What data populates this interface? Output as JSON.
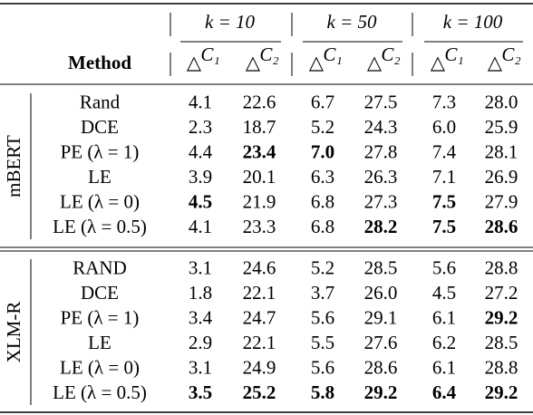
{
  "table": {
    "header": {
      "method": "Method",
      "groups": [
        {
          "label": "k = 10",
          "columns": [
            {
              "symbol": "△",
              "sup": "C₁"
            },
            {
              "symbol": "△",
              "sup": "C₂"
            }
          ]
        },
        {
          "label": "k = 50",
          "columns": [
            {
              "symbol": "△",
              "sup": "C₁"
            },
            {
              "symbol": "△",
              "sup": "C₂"
            }
          ]
        },
        {
          "label": "k = 100",
          "columns": [
            {
              "symbol": "△",
              "sup": "C₁"
            },
            {
              "symbol": "△",
              "sup": "C₂"
            }
          ]
        }
      ]
    },
    "sections": [
      {
        "label": "mBERT",
        "rows": [
          {
            "method": "Rand",
            "cells": [
              "4.1",
              "22.6",
              "6.7",
              "27.5",
              "7.3",
              "28.0"
            ],
            "bold": []
          },
          {
            "method": "DCE",
            "cells": [
              "2.3",
              "18.7",
              "5.2",
              "24.3",
              "6.0",
              "25.9"
            ],
            "bold": []
          },
          {
            "method": "PE (λ = 1)",
            "cells": [
              "4.4",
              "23.4",
              "7.0",
              "27.8",
              "7.4",
              "28.1"
            ],
            "bold": [
              1,
              2
            ]
          },
          {
            "method": "LE",
            "cells": [
              "3.9",
              "20.1",
              "6.3",
              "26.3",
              "7.1",
              "26.9"
            ],
            "bold": []
          },
          {
            "method": "LE (λ = 0)",
            "cells": [
              "4.5",
              "21.9",
              "6.8",
              "27.3",
              "7.5",
              "27.9"
            ],
            "bold": [
              0,
              4
            ]
          },
          {
            "method": "LE (λ = 0.5)",
            "cells": [
              "4.1",
              "23.3",
              "6.8",
              "28.2",
              "7.5",
              "28.6"
            ],
            "bold": [
              3,
              4,
              5
            ]
          }
        ]
      },
      {
        "label": "XLM-R",
        "rows": [
          {
            "method": "RAND",
            "cells": [
              "3.1",
              "24.6",
              "5.2",
              "28.5",
              "5.6",
              "28.8"
            ],
            "bold": []
          },
          {
            "method": "DCE",
            "cells": [
              "1.8",
              "22.1",
              "3.7",
              "26.0",
              "4.5",
              "27.2"
            ],
            "bold": []
          },
          {
            "method": "PE (λ = 1)",
            "cells": [
              "3.4",
              "24.7",
              "5.6",
              "29.1",
              "6.1",
              "29.2"
            ],
            "bold": [
              5
            ]
          },
          {
            "method": "LE",
            "cells": [
              "2.9",
              "22.1",
              "5.5",
              "27.6",
              "6.2",
              "28.5"
            ],
            "bold": []
          },
          {
            "method": "LE (λ = 0)",
            "cells": [
              "3.1",
              "24.9",
              "5.6",
              "28.6",
              "6.1",
              "28.8"
            ],
            "bold": []
          },
          {
            "method": "LE (λ = 0.5)",
            "cells": [
              "3.5",
              "25.2",
              "5.8",
              "29.2",
              "6.4",
              "29.2"
            ],
            "bold": [
              0,
              1,
              2,
              3,
              4,
              5
            ]
          }
        ]
      }
    ]
  }
}
